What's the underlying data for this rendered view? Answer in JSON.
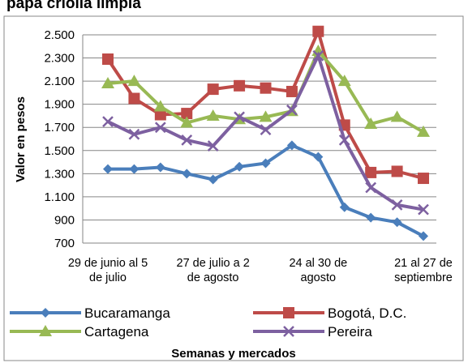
{
  "chart_data": {
    "type": "line",
    "title": "papa criolla limpia",
    "y_label": "Valor en pesos",
    "x_label": "Semanas y mercados",
    "categories": [
      "29 de junio al 5 de julio",
      null,
      null,
      null,
      "27 de julio a 2 de agosto",
      null,
      null,
      null,
      "24 al 30 de agosto",
      null,
      null,
      null,
      "21 al 27 de septiembre"
    ],
    "ylim": [
      700,
      2500
    ],
    "yticks": [
      {
        "value": 700,
        "label": "700"
      },
      {
        "value": 900,
        "label": "900"
      },
      {
        "value": 1100,
        "label": "1.100"
      },
      {
        "value": 1300,
        "label": "1.300"
      },
      {
        "value": 1500,
        "label": "1.500"
      },
      {
        "value": 1700,
        "label": "1.700"
      },
      {
        "value": 1900,
        "label": "1.900"
      },
      {
        "value": 2100,
        "label": "2.100"
      },
      {
        "value": 2300,
        "label": "2.300"
      },
      {
        "value": 2500,
        "label": "2.500"
      }
    ],
    "grid": true,
    "series": [
      {
        "name": "Bucaramanga",
        "color": "#4a7ebb",
        "marker": "diamond",
        "values": [
          1340,
          1340,
          1355,
          1300,
          1250,
          1360,
          1390,
          1545,
          1445,
          1010,
          920,
          880,
          760
        ]
      },
      {
        "name": "Bogotá, D.C.",
        "color": "#be4b48",
        "marker": "square",
        "values": [
          2290,
          1950,
          1810,
          1820,
          2030,
          2060,
          2040,
          2010,
          2530,
          1720,
          1310,
          1320,
          1260
        ]
      },
      {
        "name": "Cartagena",
        "color": "#98b954",
        "marker": "triangle",
        "values": [
          2080,
          2100,
          1880,
          1740,
          1800,
          1770,
          1790,
          1840,
          2360,
          2100,
          1730,
          1790,
          1660
        ]
      },
      {
        "name": "Pereira",
        "color": "#7d60a0",
        "marker": "x",
        "values": [
          1750,
          1640,
          1700,
          1590,
          1540,
          1790,
          1680,
          1850,
          2320,
          1590,
          1180,
          1030,
          990
        ]
      }
    ]
  }
}
